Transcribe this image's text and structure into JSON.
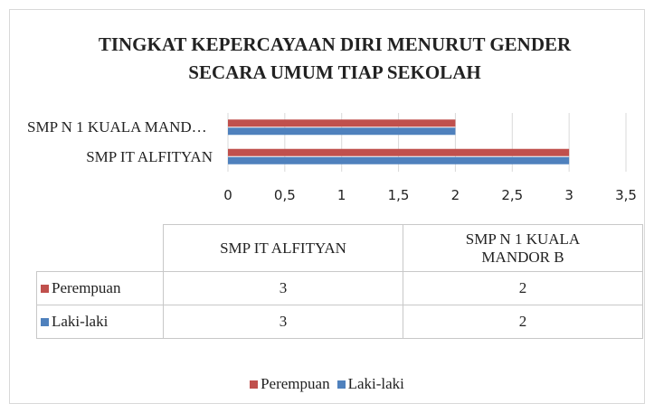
{
  "chart_data": {
    "type": "hbar",
    "title": "TINGKAT KEPERCAYAAN DIRI MENURUT GENDER SECARA UMUM TIAP SEKOLAH",
    "categories": [
      "SMP IT ALFITYAN",
      "SMP N 1 KUALA MANDOR B"
    ],
    "series": [
      {
        "name": "Perempuan",
        "color": "#c0504d",
        "values": [
          3,
          2
        ]
      },
      {
        "name": "Laki-laki",
        "color": "#4f81bd",
        "values": [
          3,
          2
        ]
      }
    ],
    "xlim": [
      0,
      3.5
    ],
    "xticks": [
      0,
      {
        "value": 0.5,
        "label": "0,5"
      },
      1,
      {
        "value": 1.5,
        "label": "1,5"
      },
      2,
      {
        "value": 2.5,
        "label": "2,5"
      },
      3,
      {
        "value": 3.5,
        "label": "3,5"
      }
    ],
    "grid": true,
    "data_table": true,
    "legend": "bottom"
  }
}
